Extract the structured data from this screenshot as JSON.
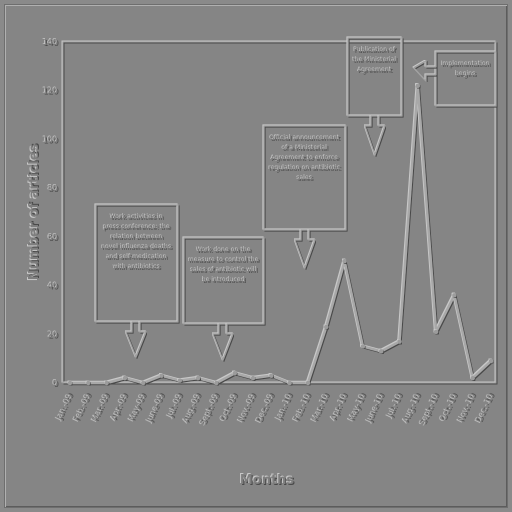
{
  "chart_data": {
    "type": "line",
    "title": "",
    "xlabel": "Months",
    "ylabel": "Number of articles",
    "ylim": [
      0,
      140
    ],
    "yticks": [
      0,
      20,
      40,
      60,
      80,
      100,
      120,
      140
    ],
    "grid": true,
    "x": [
      "Jan.-09",
      "Feb.-09",
      "Mar.-09",
      "Apr.-09",
      "May-09",
      "June-09",
      "Jul.-09",
      "Aug.-09",
      "Sept.-09",
      "Oct.-09",
      "Nov.-09",
      "Dec.-09",
      "Jan.-10",
      "Feb.-10",
      "Mar.-10",
      "Apr.-10",
      "May-10",
      "June-10",
      "Jul.-10",
      "Aug.-10",
      "Sept.-10",
      "Oct.-10",
      "Nov.-10",
      "Dec.-10"
    ],
    "series": [
      {
        "name": "",
        "values": [
          0,
          0,
          0,
          2,
          0,
          3,
          1,
          2,
          0,
          4,
          2,
          3,
          0,
          0,
          23,
          50,
          15,
          13,
          17,
          122,
          21,
          36,
          2,
          9
        ]
      }
    ],
    "annotations": [
      {
        "text": "Work activities in press conference: the relation between novel influenza deaths and self-medication with antibiotics",
        "x_index": 3.5
      },
      {
        "text": "Work done on the measure to control the sales of antibiotic will be introduced",
        "x_index": 8.5
      },
      {
        "text": "Official announcement of a Ministerial Agreement to enforce regulation on antibiotic sales",
        "x_index": 13.0
      },
      {
        "text": "Publication of the Ministerial Agreement",
        "x_index": 18.0
      },
      {
        "text": "Implementation begins",
        "x_index": 19.5
      }
    ]
  }
}
